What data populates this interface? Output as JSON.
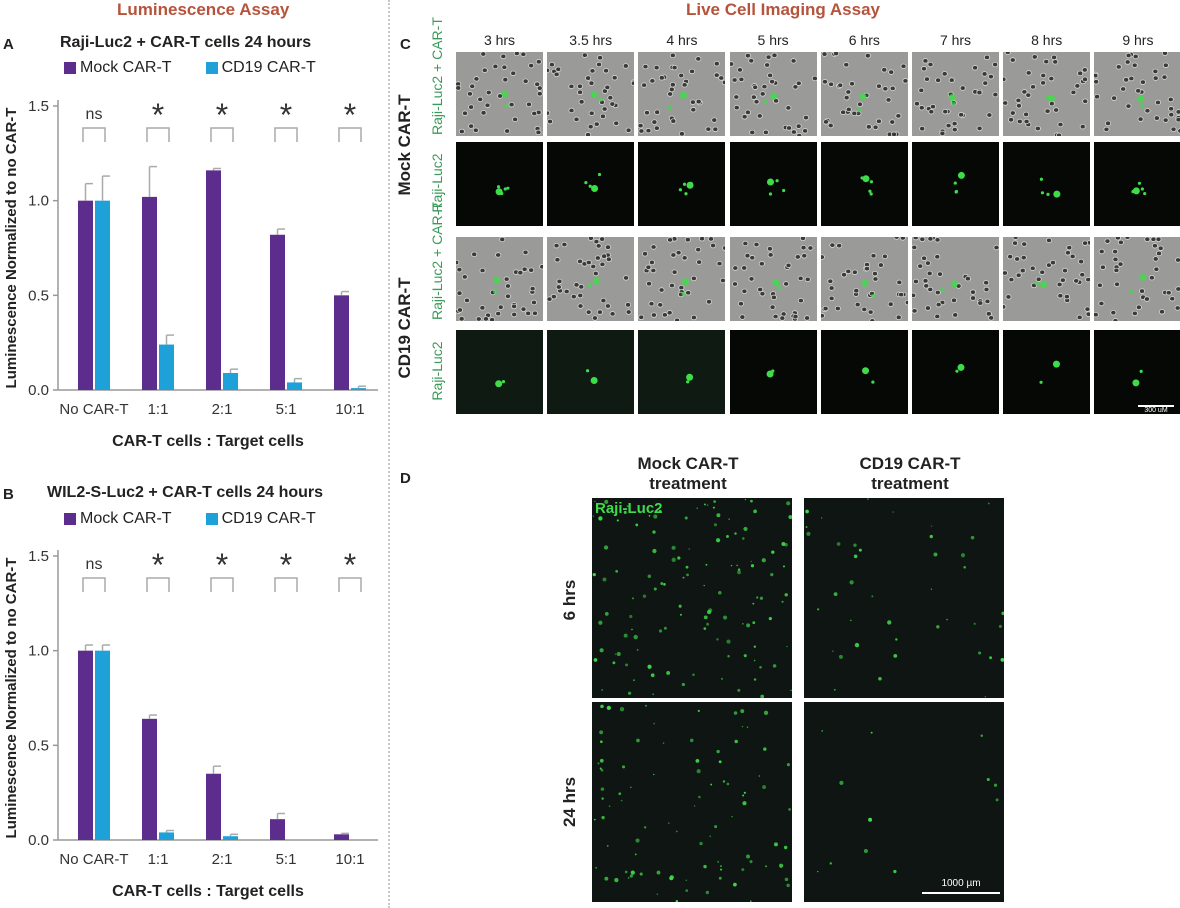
{
  "headers": {
    "left": "Luminescence Assay",
    "right": "Live Cell Imaging Assay"
  },
  "panels": {
    "a": "A",
    "b": "B",
    "c": "C",
    "d": "D"
  },
  "colors": {
    "mock": "#5c2d8c",
    "cd19": "#1ea0d8",
    "header": "#b5533c",
    "fluor_label": "#3a9a5a",
    "cell_green": "#3fdc4a"
  },
  "chart_data": [
    {
      "type": "bar",
      "title": "Raji-Luc2 + CAR-T cells 24 hours",
      "xlabel": "CAR-T cells : Target cells",
      "ylabel": "Luminescence Normalized to no CAR-T",
      "categories": [
        "No CAR-T",
        "1:1",
        "2:1",
        "5:1",
        "10:1"
      ],
      "ylim": [
        0,
        1.5
      ],
      "yticks": [
        "0.0",
        "0.5",
        "1.0",
        "1.5"
      ],
      "series": [
        {
          "name": "Mock CAR-T",
          "values": [
            1.0,
            1.02,
            1.16,
            0.82,
            0.5
          ],
          "errors": [
            0.09,
            0.16,
            0.01,
            0.03,
            0.02
          ]
        },
        {
          "name": "CD19 CAR-T",
          "values": [
            1.0,
            0.24,
            0.09,
            0.04,
            0.01
          ],
          "errors": [
            0.13,
            0.05,
            0.02,
            0.02,
            0.01
          ]
        }
      ],
      "significance": [
        "ns",
        "*",
        "*",
        "*",
        "*"
      ]
    },
    {
      "type": "bar",
      "title": "WIL2-S-Luc2 + CAR-T cells 24 hours",
      "xlabel": "CAR-T cells : Target cells",
      "ylabel": "Luminescence Normalized to no CAR-T",
      "categories": [
        "No CAR-T",
        "1:1",
        "2:1",
        "5:1",
        "10:1"
      ],
      "ylim": [
        0,
        1.5
      ],
      "yticks": [
        "0.0",
        "0.5",
        "1.0",
        "1.5"
      ],
      "series": [
        {
          "name": "Mock CAR-T",
          "values": [
            1.0,
            0.64,
            0.35,
            0.11,
            0.03
          ],
          "errors": [
            0.03,
            0.02,
            0.04,
            0.03,
            0.005
          ]
        },
        {
          "name": "CD19 CAR-T",
          "values": [
            1.0,
            0.04,
            0.02,
            0.0,
            0.0
          ],
          "errors": [
            0.03,
            0.01,
            0.01,
            0.0,
            0.0
          ]
        }
      ],
      "significance": [
        "ns",
        "*",
        "*",
        "*",
        "*"
      ]
    }
  ],
  "imaging": {
    "timepoints": [
      "3 hrs",
      "3.5 hrs",
      "4 hrs",
      "5 hrs",
      "6 hrs",
      "7 hrs",
      "8 hrs",
      "9 hrs"
    ],
    "groups": [
      "Mock CAR-T",
      "CD19 CAR-T"
    ],
    "row_labels": {
      "merge": "Raji-Luc2 + CAR-T",
      "fluor": "Raji-Luc2"
    },
    "scale_bar": "300 uM"
  },
  "panel_d": {
    "columns": [
      "Mock CAR-T treatment",
      "CD19 CAR-T treatment"
    ],
    "rows": [
      "6 hrs",
      "24 hrs"
    ],
    "channel_label": "Raji-Luc2",
    "scale_bar": "1000 µm"
  }
}
